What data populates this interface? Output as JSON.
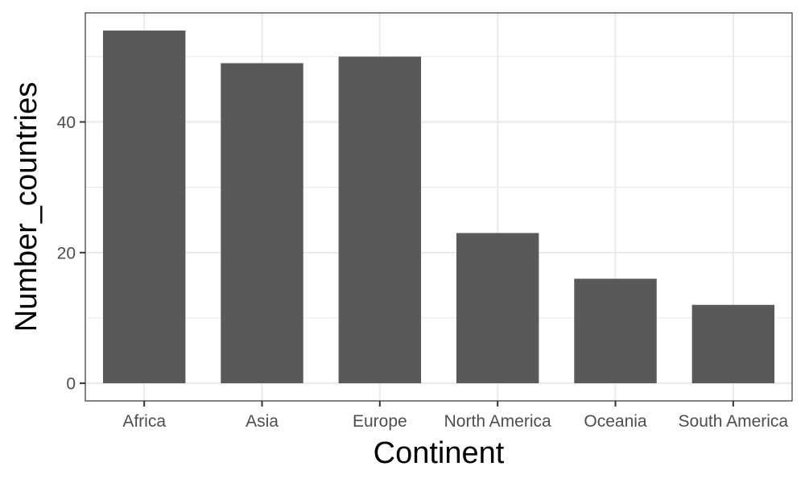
{
  "chart_data": {
    "type": "bar",
    "title": "",
    "xlabel": "Continent",
    "ylabel": "Number_countries",
    "categories": [
      "Africa",
      "Asia",
      "Europe",
      "North America",
      "Oceania",
      "South America"
    ],
    "values": [
      54,
      49,
      50,
      23,
      16,
      12
    ],
    "ylim": [
      -2.7,
      56.7
    ],
    "yticks": [
      0,
      20,
      40
    ],
    "grid": true,
    "legend": "none",
    "colors": {
      "bar": "#595959",
      "grid": "#ebebeb",
      "panel_border": "#333333",
      "tick": "#333333",
      "tick_label": "#4d4d4d"
    }
  }
}
